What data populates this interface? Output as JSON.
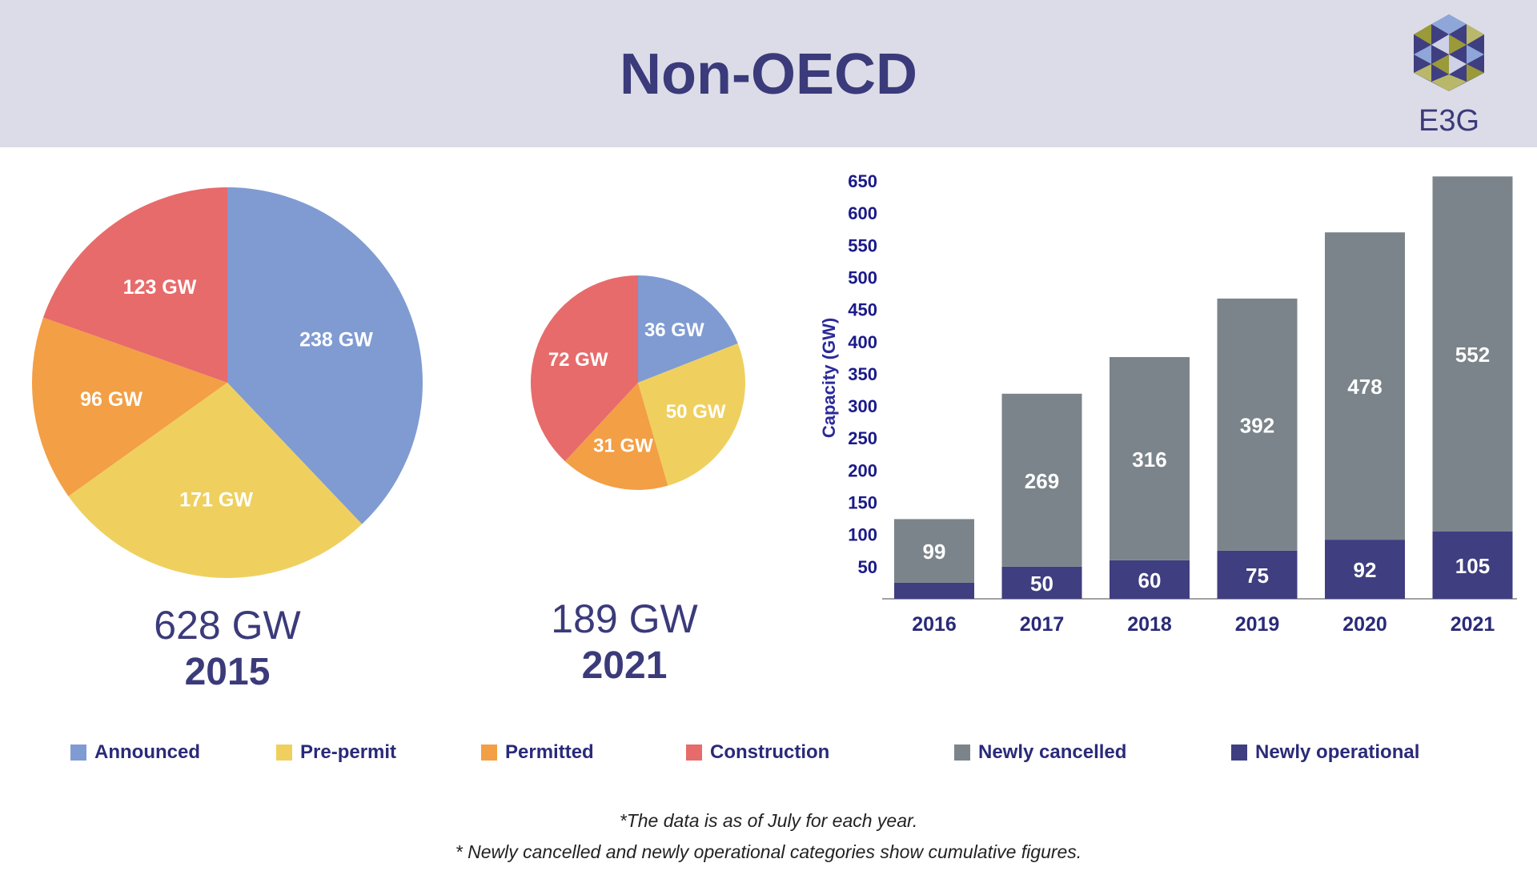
{
  "header": {
    "title": "Non-OECD",
    "logo_text": "E3G"
  },
  "colors": {
    "announced": "#7f9bd2",
    "pre_permit": "#efd05f",
    "permitted": "#f39f45",
    "construction": "#e76b6b",
    "newly_cancelled": "#7b848a",
    "newly_operational": "#3f3e80"
  },
  "chart_data": [
    {
      "type": "pie",
      "slices": [
        {
          "label": "238 GW",
          "category": "Announced",
          "value": 238
        },
        {
          "label": "171 GW",
          "category": "Pre-permit",
          "value": 171
        },
        {
          "label": "96 GW",
          "category": "Permitted",
          "value": 96
        },
        {
          "label": "123 GW",
          "category": "Construction",
          "value": 123
        }
      ],
      "total_label": "628 GW",
      "year_label": "2015"
    },
    {
      "type": "pie",
      "slices": [
        {
          "label": "36 GW",
          "category": "Announced",
          "value": 36
        },
        {
          "label": "50 GW",
          "category": "Pre-permit",
          "value": 50
        },
        {
          "label": "31 GW",
          "category": "Permitted",
          "value": 31
        },
        {
          "label": "72 GW",
          "category": "Construction",
          "value": 72
        }
      ],
      "total_label": "189 GW",
      "year_label": "2021"
    },
    {
      "type": "bar",
      "stacked": true,
      "categories": [
        "2016",
        "2017",
        "2018",
        "2019",
        "2020",
        "2021"
      ],
      "series": [
        {
          "name": "Newly operational",
          "values": [
            25,
            50,
            60,
            75,
            92,
            105
          ],
          "labels": [
            "",
            "50",
            "60",
            "75",
            "92",
            "105"
          ]
        },
        {
          "name": "Newly cancelled",
          "values": [
            99,
            269,
            316,
            392,
            478,
            552
          ],
          "labels": [
            "99",
            "269",
            "316",
            "392",
            "478",
            "552"
          ]
        }
      ],
      "ylabel": "Capacity (GW)",
      "ylim": [
        0,
        650
      ],
      "yticks": [
        "50",
        "100",
        "150",
        "200",
        "250",
        "300",
        "350",
        "400",
        "450",
        "500",
        "550",
        "600",
        "650"
      ],
      "grid": false
    }
  ],
  "legend": [
    "Announced",
    "Pre-permit",
    "Permitted",
    "Construction",
    "Newly cancelled",
    "Newly operational"
  ],
  "notes": [
    "*The data is as of July for each year.",
    "* Newly cancelled and newly operational categories show cumulative figures."
  ]
}
